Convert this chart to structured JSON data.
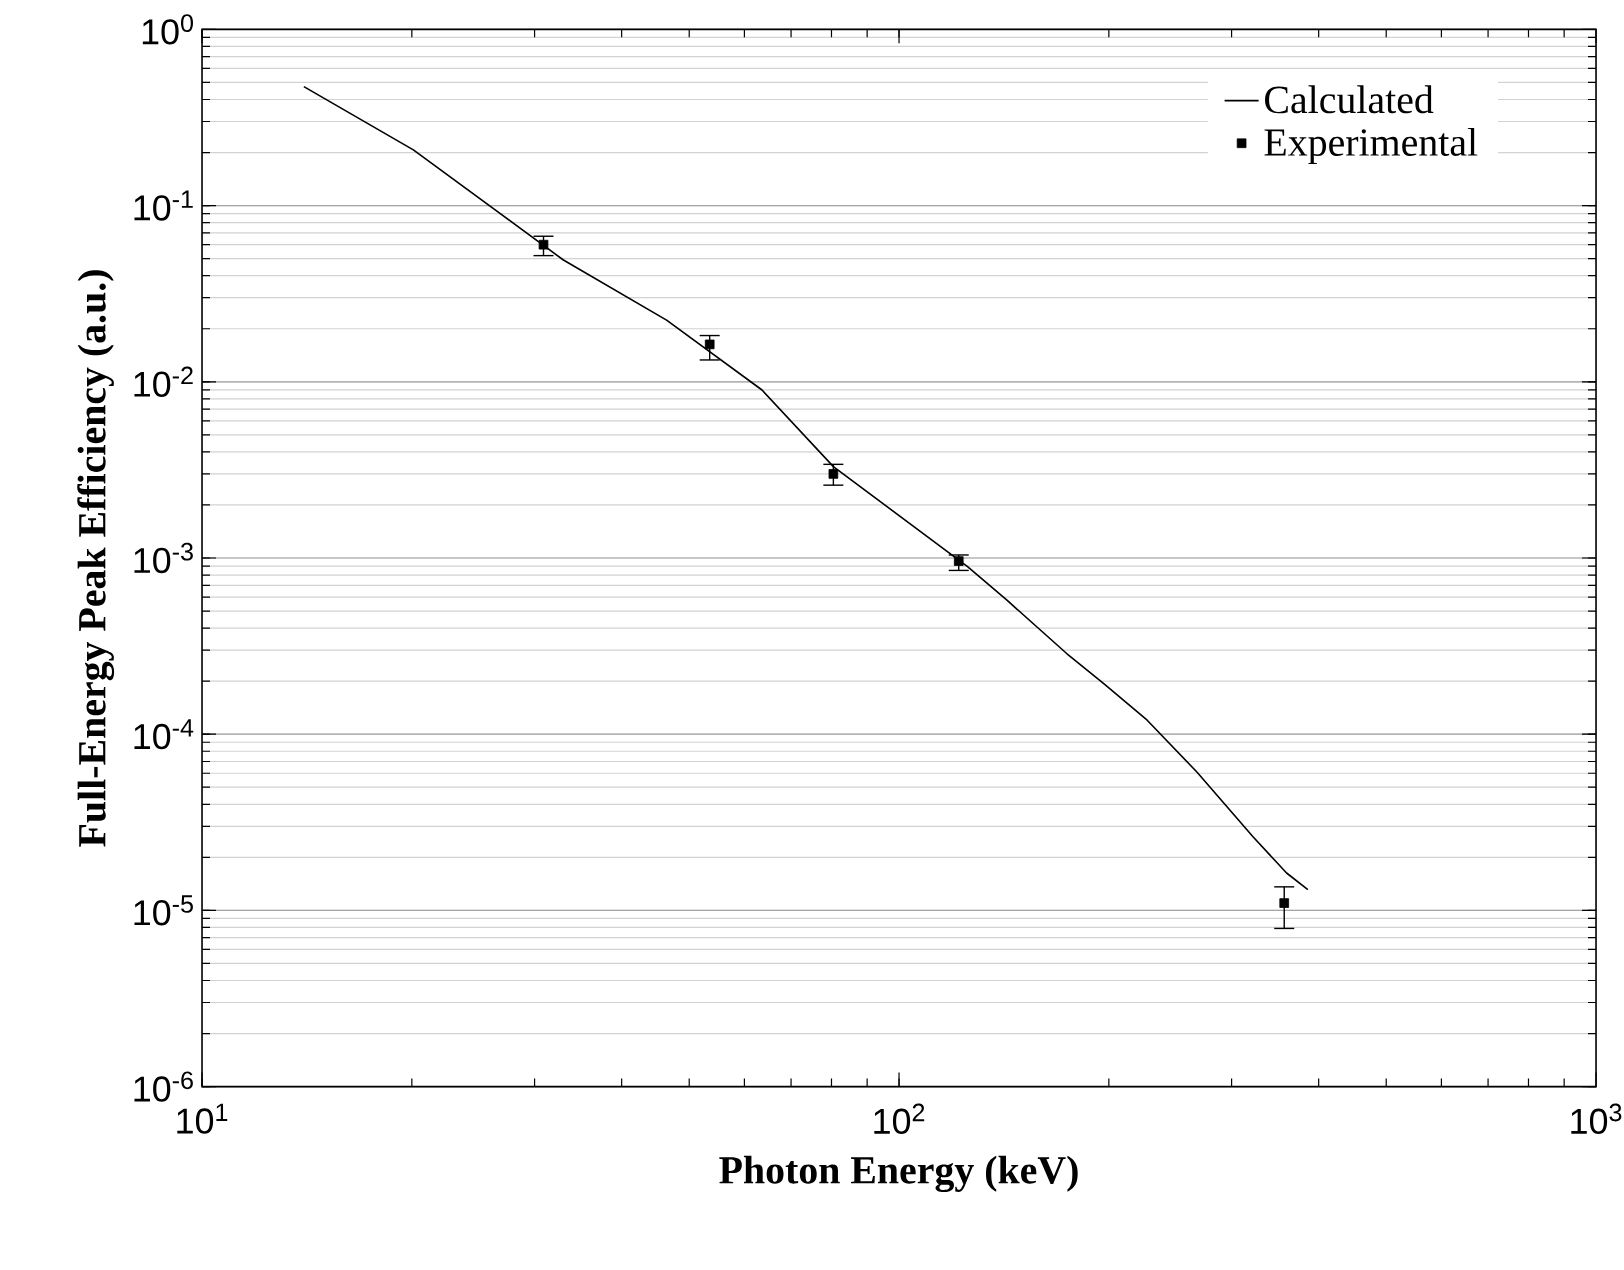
{
  "chart_data": {
    "type": "line",
    "xlabel": "Photon Energy (keV)",
    "ylabel": "Full-Energy Peak Efficiency (a.u.)",
    "log": "xy",
    "xlim": [
      10,
      1000
    ],
    "ylim": [
      1e-06,
      1
    ],
    "xticks": [
      {
        "value": 10,
        "label": "10$^{1}$"
      },
      {
        "value": 100,
        "label": "10$^{2}$"
      },
      {
        "value": 1000,
        "label": "10$^{3}$"
      }
    ],
    "yticks": [
      {
        "value": 1e-06,
        "label": "10$^{-6}$"
      },
      {
        "value": 1e-05,
        "label": "10$^{-5}$"
      },
      {
        "value": 0.0001,
        "label": "10$^{-4}$"
      },
      {
        "value": 0.001,
        "label": "10$^{-3}$"
      },
      {
        "value": 0.01,
        "label": "10$^{-2}$"
      },
      {
        "value": 0.1,
        "label": "10$^{-1}$"
      },
      {
        "value": 1,
        "label": "10$^{0}$"
      }
    ],
    "grid": "y",
    "legend": "top right",
    "series": [
      {
        "name": "Calculated",
        "color": "#000000",
        "marker": "none",
        "line_style": "solid",
        "x": [
          14.0,
          20.1,
          33.0,
          46.4,
          63.6,
          80.5,
          125.4,
          142.7,
          174,
          196.5,
          227,
          267.5,
          322,
          359.8,
          386
        ],
        "values": [
          0.473,
          0.207,
          0.0491,
          0.0224,
          0.00898,
          0.0033,
          0.000893,
          0.000578,
          0.000287,
          0.000194,
          0.00012,
          6.1e-05,
          2.62e-05,
          1.63e-05,
          1.31e-05
        ]
      },
      {
        "name": "Experimental",
        "type": "scatter",
        "color": "#000000",
        "marker": "square",
        "x": [
          30.9,
          53.5,
          80.5,
          121.8,
          357
        ],
        "values": [
          0.06,
          0.0163,
          0.003,
          0.00096,
          1.1e-05
        ],
        "errors": [
          [
            0.052,
            0.067
          ],
          [
            0.0133,
            0.0183
          ],
          [
            0.00259,
            0.0034
          ],
          [
            0.00085,
            0.00104
          ],
          [
            7.9e-06,
            1.36e-05
          ]
        ]
      }
    ]
  }
}
